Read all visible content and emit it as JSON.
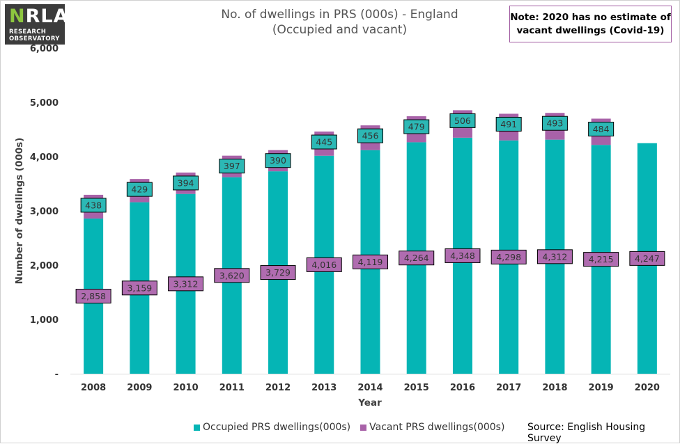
{
  "logo": {
    "mark_nr": "N",
    "mark_rest": "RLA",
    "line1": "RESEARCH",
    "line2": "OBSERVATORY"
  },
  "title_line1": "No. of dwellings in PRS (000s) - England",
  "title_line2": "(Occupied and vacant)",
  "note_line1": "Note: 2020 has no estimate of",
  "note_line2": "vacant dwellings (Covid-19)",
  "source": "Source: English Housing Survey",
  "colors": {
    "occupied": "#05b5b5",
    "vacant": "#a862a8",
    "occ_label_fill": "#2cb8b5",
    "vac_label_fill": "#b06cb0"
  },
  "chart_data": {
    "type": "bar",
    "stacked": true,
    "xlabel": "Year",
    "ylabel": "Number of dwellings (000s)",
    "ylim": [
      0,
      6000
    ],
    "y_ticks": [
      "-",
      "1,000",
      "2,000",
      "3,000",
      "4,000",
      "5,000",
      "6,000"
    ],
    "categories": [
      "2008",
      "2009",
      "2010",
      "2011",
      "2012",
      "2013",
      "2014",
      "2015",
      "2016",
      "2017",
      "2018",
      "2019",
      "2020"
    ],
    "series": [
      {
        "name": "Occupied PRS dwellings(000s)",
        "values": [
          2858,
          3159,
          3312,
          3620,
          3729,
          4016,
          4119,
          4264,
          4348,
          4298,
          4312,
          4215,
          4247
        ],
        "labels": [
          "2,858",
          "3,159",
          "3,312",
          "3,620",
          "3,729",
          "4,016",
          "4,119",
          "4,264",
          "4,348",
          "4,298",
          "4,312",
          "4,215",
          "4,247"
        ]
      },
      {
        "name": "Vacant PRS dwellings(000s)",
        "values": [
          438,
          429,
          394,
          397,
          390,
          445,
          456,
          479,
          506,
          491,
          493,
          484,
          null
        ],
        "labels": [
          "438",
          "429",
          "394",
          "397",
          "390",
          "445",
          "456",
          "479",
          "506",
          "491",
          "493",
          "484",
          null
        ]
      }
    ],
    "legend": "bottom"
  }
}
